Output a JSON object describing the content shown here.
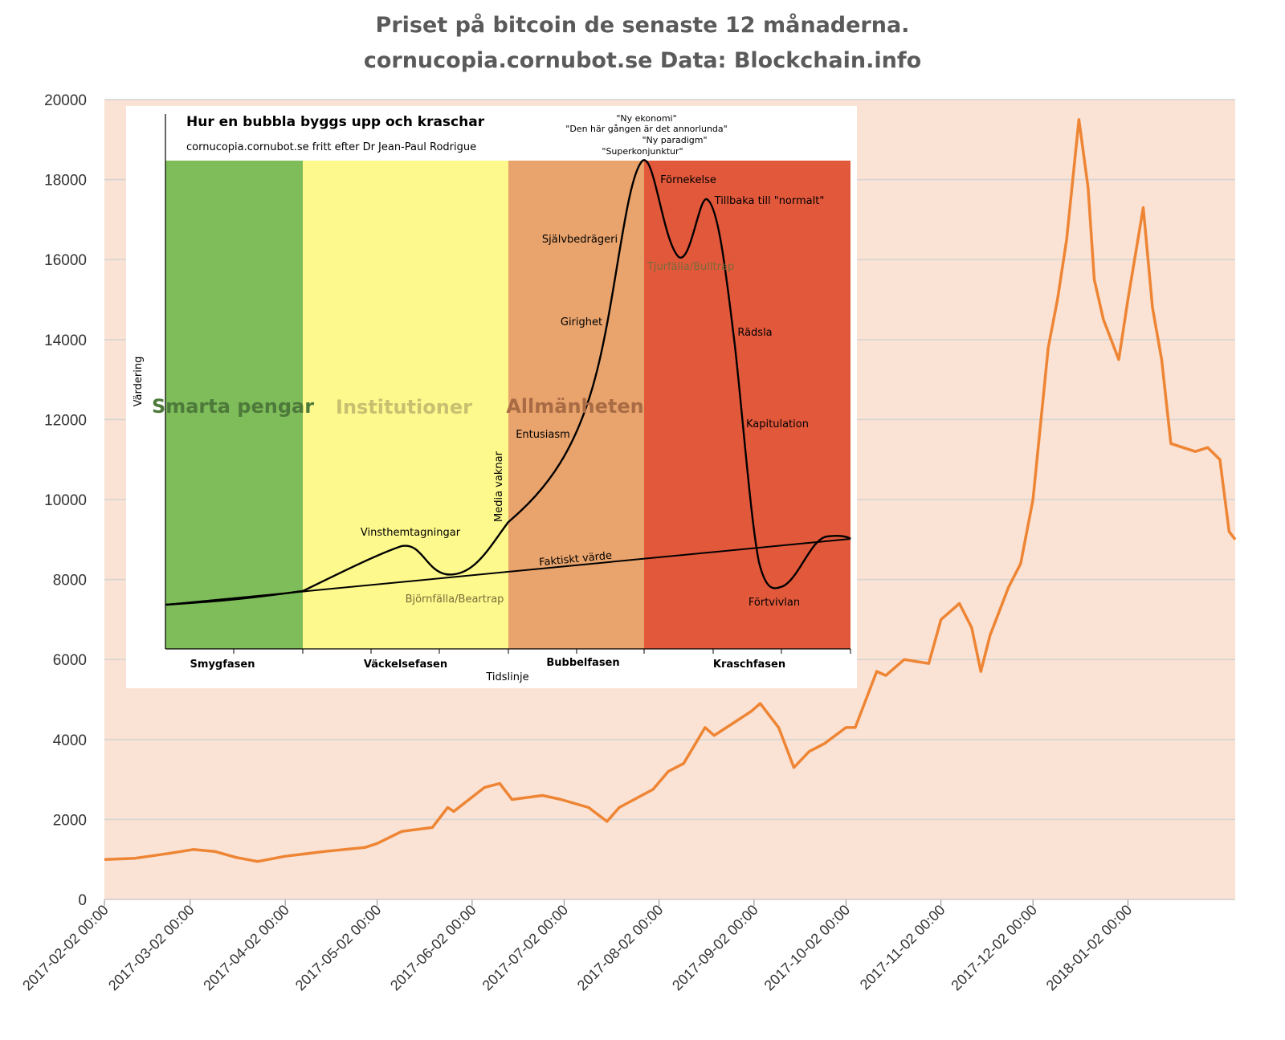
{
  "title_lines": [
    "Priset på bitcoin de senaste 12 månaderna.",
    "cornucopia.cornubot.se Data: Blockchain.info"
  ],
  "colors": {
    "plot_bg": "#fae2d4",
    "line": "#ee8534",
    "grid": "#d4d4d4",
    "green": "#7fbd5a",
    "yellow": "#fdf98d",
    "orange": "#e9a36c",
    "red": "#e2583b"
  },
  "chart_data": {
    "type": "line",
    "title": "Priset på bitcoin de senaste 12 månaderna.",
    "subtitle": "cornucopia.cornubot.se Data: Blockchain.info",
    "xlabel": "",
    "ylabel": "",
    "ylim": [
      0,
      20000
    ],
    "yticks": [
      0,
      2000,
      4000,
      6000,
      8000,
      10000,
      12000,
      14000,
      16000,
      18000,
      20000
    ],
    "xlim": [
      "2017-02-02",
      "2018-02-06"
    ],
    "xticks": [
      "2017-02-02 00:00",
      "2017-03-02 00:00",
      "2017-04-02 00:00",
      "2017-05-02 00:00",
      "2017-06-02 00:00",
      "2017-07-02 00:00",
      "2017-08-02 00:00",
      "2017-09-02 00:00",
      "2017-10-02 00:00",
      "2017-11-02 00:00",
      "2017-12-02 00:00",
      "2018-01-02 00:00"
    ],
    "grid": true,
    "series": [
      {
        "name": "",
        "x": [
          "2017-02-02",
          "2017-02-12",
          "2017-02-23",
          "2017-03-03",
          "2017-03-10",
          "2017-03-17",
          "2017-03-24",
          "2017-04-02",
          "2017-04-15",
          "2017-04-28",
          "2017-05-02",
          "2017-05-10",
          "2017-05-20",
          "2017-05-25",
          "2017-05-27",
          "2017-06-06",
          "2017-06-11",
          "2017-06-15",
          "2017-06-25",
          "2017-07-01",
          "2017-07-10",
          "2017-07-16",
          "2017-07-20",
          "2017-07-31",
          "2017-08-05",
          "2017-08-10",
          "2017-08-17",
          "2017-08-20",
          "2017-08-25",
          "2017-09-01",
          "2017-09-04",
          "2017-09-10",
          "2017-09-14",
          "2017-09-15",
          "2017-09-20",
          "2017-09-25",
          "2017-10-02",
          "2017-10-05",
          "2017-10-12",
          "2017-10-15",
          "2017-10-21",
          "2017-10-29",
          "2017-11-02",
          "2017-11-08",
          "2017-11-12",
          "2017-11-15",
          "2017-11-18",
          "2017-11-24",
          "2017-11-28",
          "2017-12-02",
          "2017-12-07",
          "2017-12-10",
          "2017-12-13",
          "2017-12-17",
          "2017-12-20",
          "2017-12-22",
          "2017-12-25",
          "2017-12-30",
          "2018-01-02",
          "2018-01-07",
          "2018-01-10",
          "2018-01-13",
          "2018-01-16",
          "2018-01-20",
          "2018-01-24",
          "2018-01-28",
          "2018-02-01",
          "2018-02-04",
          "2018-02-06"
        ],
        "values": [
          1000,
          1030,
          1150,
          1250,
          1200,
          1050,
          950,
          1080,
          1200,
          1300,
          1400,
          1700,
          1800,
          2300,
          2200,
          2800,
          2900,
          2500,
          2600,
          2500,
          2300,
          1950,
          2300,
          2750,
          3200,
          3400,
          4300,
          4100,
          4350,
          4700,
          4900,
          4300,
          3500,
          3300,
          3700,
          3900,
          4300,
          4300,
          5700,
          5600,
          6000,
          5900,
          7000,
          7400,
          6800,
          5700,
          6600,
          7800,
          8400,
          10000,
          13800,
          15000,
          16500,
          19500,
          17800,
          15500,
          14500,
          13500,
          15000,
          17300,
          14800,
          13500,
          11400,
          11300,
          11200,
          11300,
          11000,
          9200,
          9000
        ]
      }
    ]
  },
  "inset": {
    "title": "Hur en bubbla byggs upp och kraschar",
    "subtitle": "cornucopia.cornubot.se fritt efter Dr Jean-Paul Rodrigue",
    "y_axis_label": "Värdering",
    "x_axis_label": "Tidslinje",
    "zones": [
      "Smarta pengar",
      "Institutioner",
      "Allmänheten"
    ],
    "phases": [
      "Smygfasen",
      "Väckelsefasen",
      "Bubbelfasen",
      "Kraschfasen"
    ],
    "top_quotes": [
      "\"Ny ekonomi\"",
      "\"Den här gången är det annorlunda\"",
      "\"Ny paradigm\"",
      "\"Superkonjunktur\""
    ],
    "labels": {
      "vinst": "Vinsthemtagningar",
      "bjorn": "Björnfälla/Beartrap",
      "media": "Media vaknar",
      "entusiasm": "Entusiasm",
      "girighet": "Girighet",
      "sjalv": "Självbedrägeri",
      "fornekelse": "Förnekelse",
      "tillbaka": "Tillbaka till \"normalt\"",
      "tjur": "Tjurfälla/Bulltrap",
      "radsla": "Rädsla",
      "kapitulation": "Kapitulation",
      "fortvivlan": "Förtvivlan",
      "faktiskt": "Faktiskt värde"
    }
  }
}
